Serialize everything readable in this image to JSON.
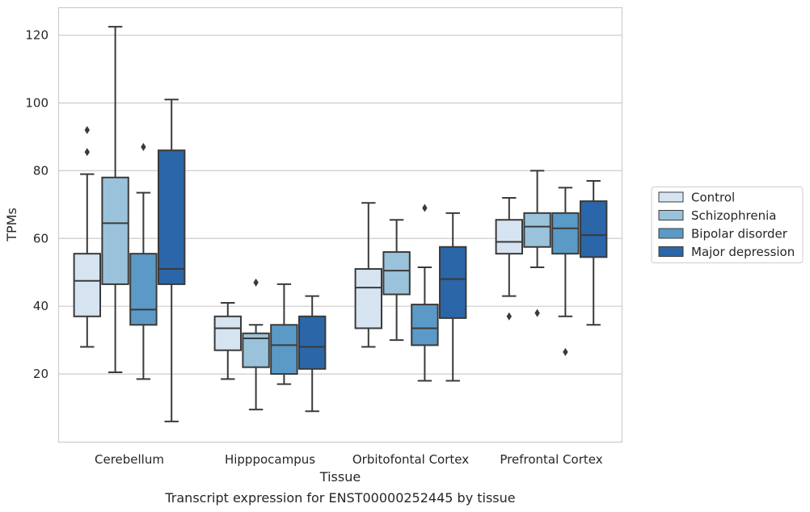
{
  "caption": "Transcript expression for ENST00000252445 by tissue",
  "chart_data": {
    "type": "box",
    "xlabel": "Tissue",
    "ylabel": "TPMs",
    "ylim": [
      0,
      128
    ],
    "yticks": [
      20,
      40,
      60,
      80,
      100,
      120
    ],
    "grid": true,
    "legend_position": "right",
    "categories": [
      "Cerebellum",
      "Hipppocampus",
      "Orbitofontal Cortex",
      "Prefrontal Cortex"
    ],
    "series": [
      {
        "name": "Control",
        "color": "#d6e4f1",
        "boxes": [
          {
            "whislo": 28,
            "q1": 37,
            "med": 47.5,
            "q3": 55.5,
            "whishi": 79,
            "fliers": [
              85.5,
              92
            ]
          },
          {
            "whislo": 18.5,
            "q1": 27,
            "med": 33.5,
            "q3": 37,
            "whishi": 41,
            "fliers": []
          },
          {
            "whislo": 28,
            "q1": 33.5,
            "med": 45.5,
            "q3": 51,
            "whishi": 70.5,
            "fliers": []
          },
          {
            "whislo": 43,
            "q1": 55.5,
            "med": 59,
            "q3": 65.5,
            "whishi": 72,
            "fliers": [
              37
            ]
          }
        ]
      },
      {
        "name": "Schizophrenia",
        "color": "#9ac3db",
        "boxes": [
          {
            "whislo": 20.5,
            "q1": 46.5,
            "med": 64.5,
            "q3": 78,
            "whishi": 122.5,
            "fliers": []
          },
          {
            "whislo": 9.5,
            "q1": 22,
            "med": 30.5,
            "q3": 32,
            "whishi": 34.5,
            "fliers": [
              47
            ]
          },
          {
            "whislo": 30,
            "q1": 43.5,
            "med": 50.5,
            "q3": 56,
            "whishi": 65.5,
            "fliers": []
          },
          {
            "whislo": 51.5,
            "q1": 57.5,
            "med": 63.5,
            "q3": 67.5,
            "whishi": 80,
            "fliers": [
              38
            ]
          }
        ]
      },
      {
        "name": "Bipolar disorder",
        "color": "#5b9ac7",
        "boxes": [
          {
            "whislo": 18.5,
            "q1": 34.5,
            "med": 39,
            "q3": 55.5,
            "whishi": 73.5,
            "fliers": [
              87
            ]
          },
          {
            "whislo": 17,
            "q1": 20,
            "med": 28.5,
            "q3": 34.5,
            "whishi": 46.5,
            "fliers": []
          },
          {
            "whislo": 18,
            "q1": 28.5,
            "med": 33.5,
            "q3": 40.5,
            "whishi": 51.5,
            "fliers": [
              69
            ]
          },
          {
            "whislo": 37,
            "q1": 55.5,
            "med": 63,
            "q3": 67.5,
            "whishi": 75,
            "fliers": [
              26.5
            ]
          }
        ]
      },
      {
        "name": "Major depression",
        "color": "#2b66a8",
        "boxes": [
          {
            "whislo": 6,
            "q1": 46.5,
            "med": 51,
            "q3": 86,
            "whishi": 101,
            "fliers": []
          },
          {
            "whislo": 9,
            "q1": 21.5,
            "med": 28,
            "q3": 37,
            "whishi": 43,
            "fliers": []
          },
          {
            "whislo": 18,
            "q1": 36.5,
            "med": 48,
            "q3": 57.5,
            "whishi": 67.5,
            "fliers": []
          },
          {
            "whislo": 34.5,
            "q1": 54.5,
            "med": 61,
            "q3": 71,
            "whishi": 77,
            "fliers": []
          }
        ]
      }
    ]
  }
}
